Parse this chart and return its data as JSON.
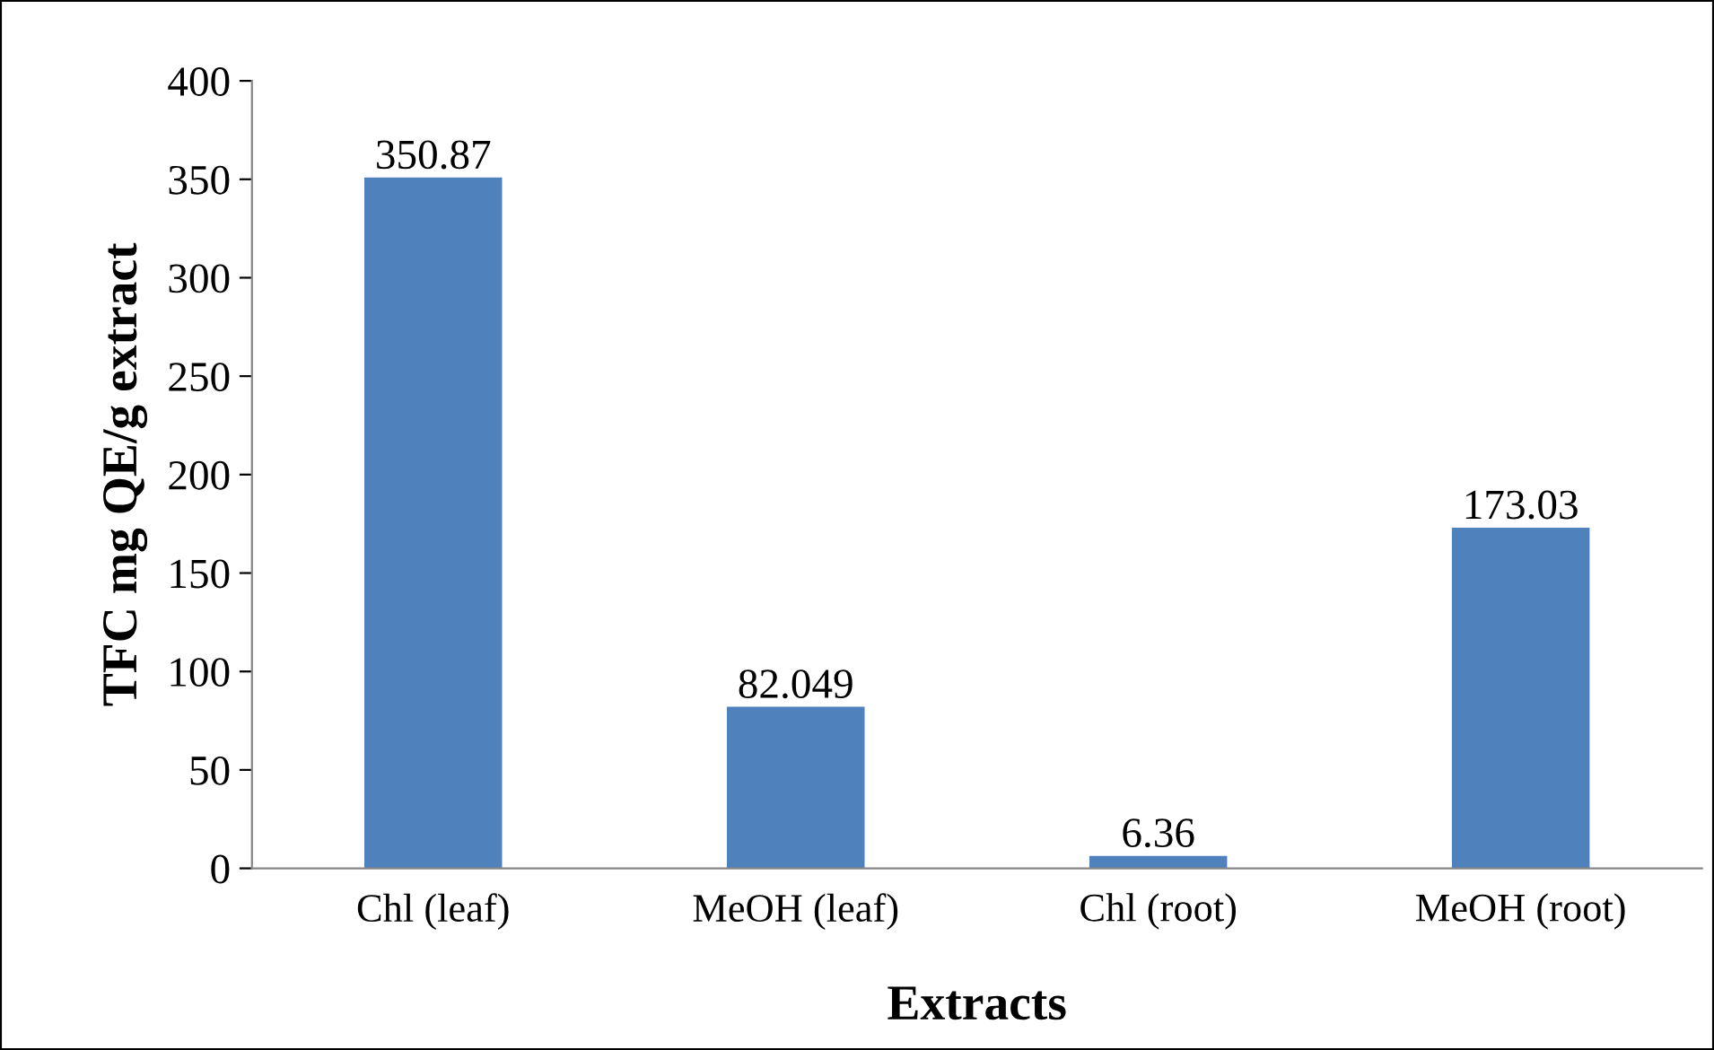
{
  "chart_data": {
    "type": "bar",
    "xlabel": "Extracts",
    "ylabel": "TFC mg QE/g extract",
    "categories": [
      "Chl (leaf)",
      "MeOH (leaf)",
      "Chl (root)",
      "MeOH (root)"
    ],
    "values": [
      350.87,
      82.049,
      6.36,
      173.03
    ],
    "color": "#4f81bd",
    "ylim": [
      0,
      400
    ],
    "yticks": [
      0,
      50,
      100,
      150,
      200,
      250,
      300,
      350,
      400
    ],
    "data_labels": true,
    "grid": false,
    "legend": false
  }
}
